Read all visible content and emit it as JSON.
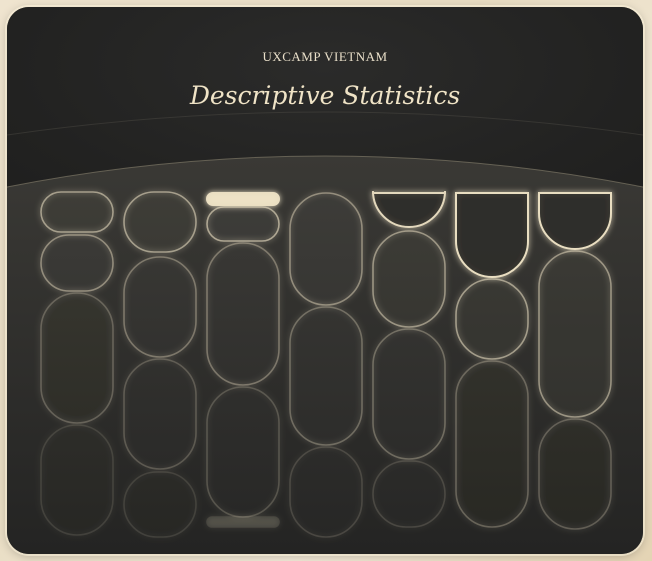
{
  "brand": "UXCAMP VIETNAM",
  "title": "Descriptive Statistics",
  "colors": {
    "card": "#2a2a28",
    "hero": "#222221",
    "stroke": "#efe3c6",
    "accent": "#f2e6c8"
  }
}
